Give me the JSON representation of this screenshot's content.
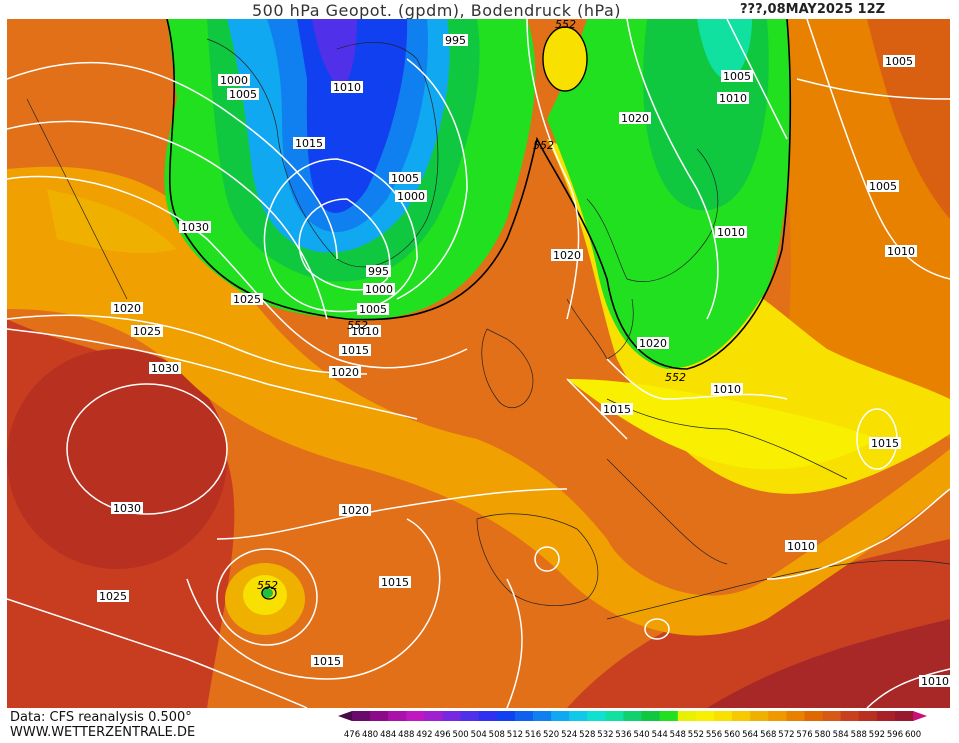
{
  "header": {
    "title": "500 hPa Geopot. (gpdm), Bodendruck (hPa)",
    "run_info": "???,08MAY2025  12Z"
  },
  "footer": {
    "source": "Data: CFS reanalysis 0.500°",
    "site": "WWW.WETTERZENTRALE.DE"
  },
  "legend": {
    "values": [
      "476",
      "480",
      "484",
      "488",
      "492",
      "496",
      "500",
      "504",
      "508",
      "512",
      "516",
      "520",
      "524",
      "528",
      "532",
      "536",
      "540",
      "544",
      "548",
      "552",
      "556",
      "560",
      "564",
      "568",
      "572",
      "576",
      "580",
      "584",
      "588",
      "592",
      "596",
      "600"
    ],
    "colors": [
      "#4a0a4a",
      "#6a0a6a",
      "#8a0a8a",
      "#aa10aa",
      "#c018c0",
      "#a020d0",
      "#7828e0",
      "#5030e8",
      "#3030f0",
      "#1040f0",
      "#1060f0",
      "#1080f0",
      "#10a8f0",
      "#10c8e8",
      "#10e0d0",
      "#10e0a0",
      "#10d070",
      "#10c840",
      "#20e020",
      "#e8f000",
      "#f8f000",
      "#f8e000",
      "#f8c800",
      "#f0b000",
      "#f09800",
      "#e88000",
      "#e06800",
      "#d85818",
      "#c84020",
      "#b83020",
      "#a82028",
      "#981830",
      "#c8107a"
    ]
  },
  "pressure_labels": [
    {
      "id": "p1000-nw",
      "text": "1000"
    },
    {
      "id": "p1005-nw",
      "text": "1005"
    },
    {
      "id": "p1010-greenland",
      "text": "1010"
    },
    {
      "id": "p995-n",
      "text": "995"
    },
    {
      "id": "p1005-ne",
      "text": "1005"
    },
    {
      "id": "p1005-far-ne",
      "text": "1005"
    },
    {
      "id": "p1010-scand",
      "text": "1010"
    },
    {
      "id": "p1020-n",
      "text": "1020"
    },
    {
      "id": "p1015-w-greenland",
      "text": "1015"
    },
    {
      "id": "p1005-low",
      "text": "1005"
    },
    {
      "id": "p1000-low",
      "text": "1000"
    },
    {
      "id": "p995-low",
      "text": "995"
    },
    {
      "id": "p1000-low-s",
      "text": "1000"
    },
    {
      "id": "p1005-low-s",
      "text": "1005"
    },
    {
      "id": "p1010-low-s",
      "text": "1010"
    },
    {
      "id": "p1015-low-s",
      "text": "1015"
    },
    {
      "id": "p1020-mid",
      "text": "1020"
    },
    {
      "id": "p1030-lab",
      "text": "1030"
    },
    {
      "id": "p1025-lab",
      "text": "1025"
    },
    {
      "id": "p1020-w",
      "text": "1020"
    },
    {
      "id": "p1025-w",
      "text": "1025"
    },
    {
      "id": "p1030-azh",
      "text": "1030"
    },
    {
      "id": "p1030-azh-s",
      "text": "1030"
    },
    {
      "id": "p1025-sw",
      "text": "1025"
    },
    {
      "id": "p1020-norway",
      "text": "1020"
    },
    {
      "id": "p1020-denmark",
      "text": "1020"
    },
    {
      "id": "p1015-germany",
      "text": "1015"
    },
    {
      "id": "p1010-poland",
      "text": "1010"
    },
    {
      "id": "p1005-russia",
      "text": "1005"
    },
    {
      "id": "p1010-russia",
      "text": "1010"
    },
    {
      "id": "p1010-east",
      "text": "1010"
    },
    {
      "id": "p1015-east",
      "text": "1015"
    },
    {
      "id": "p1020-atl",
      "text": "1020"
    },
    {
      "id": "p1015-atl",
      "text": "1015"
    },
    {
      "id": "p1015-sw",
      "text": "1015"
    },
    {
      "id": "p1010-med",
      "text": "1010"
    },
    {
      "id": "p1010-se",
      "text": "1010"
    }
  ],
  "geopot_labels": [
    {
      "id": "g552-iceland",
      "text": "552"
    },
    {
      "id": "g552-norway",
      "text": "552"
    },
    {
      "id": "g552-greenland-s",
      "text": "552"
    },
    {
      "id": "g552-baltic",
      "text": "552"
    },
    {
      "id": "g552-azores",
      "text": "552"
    },
    {
      "id": "g552-svalbard",
      "text": "552"
    }
  ]
}
